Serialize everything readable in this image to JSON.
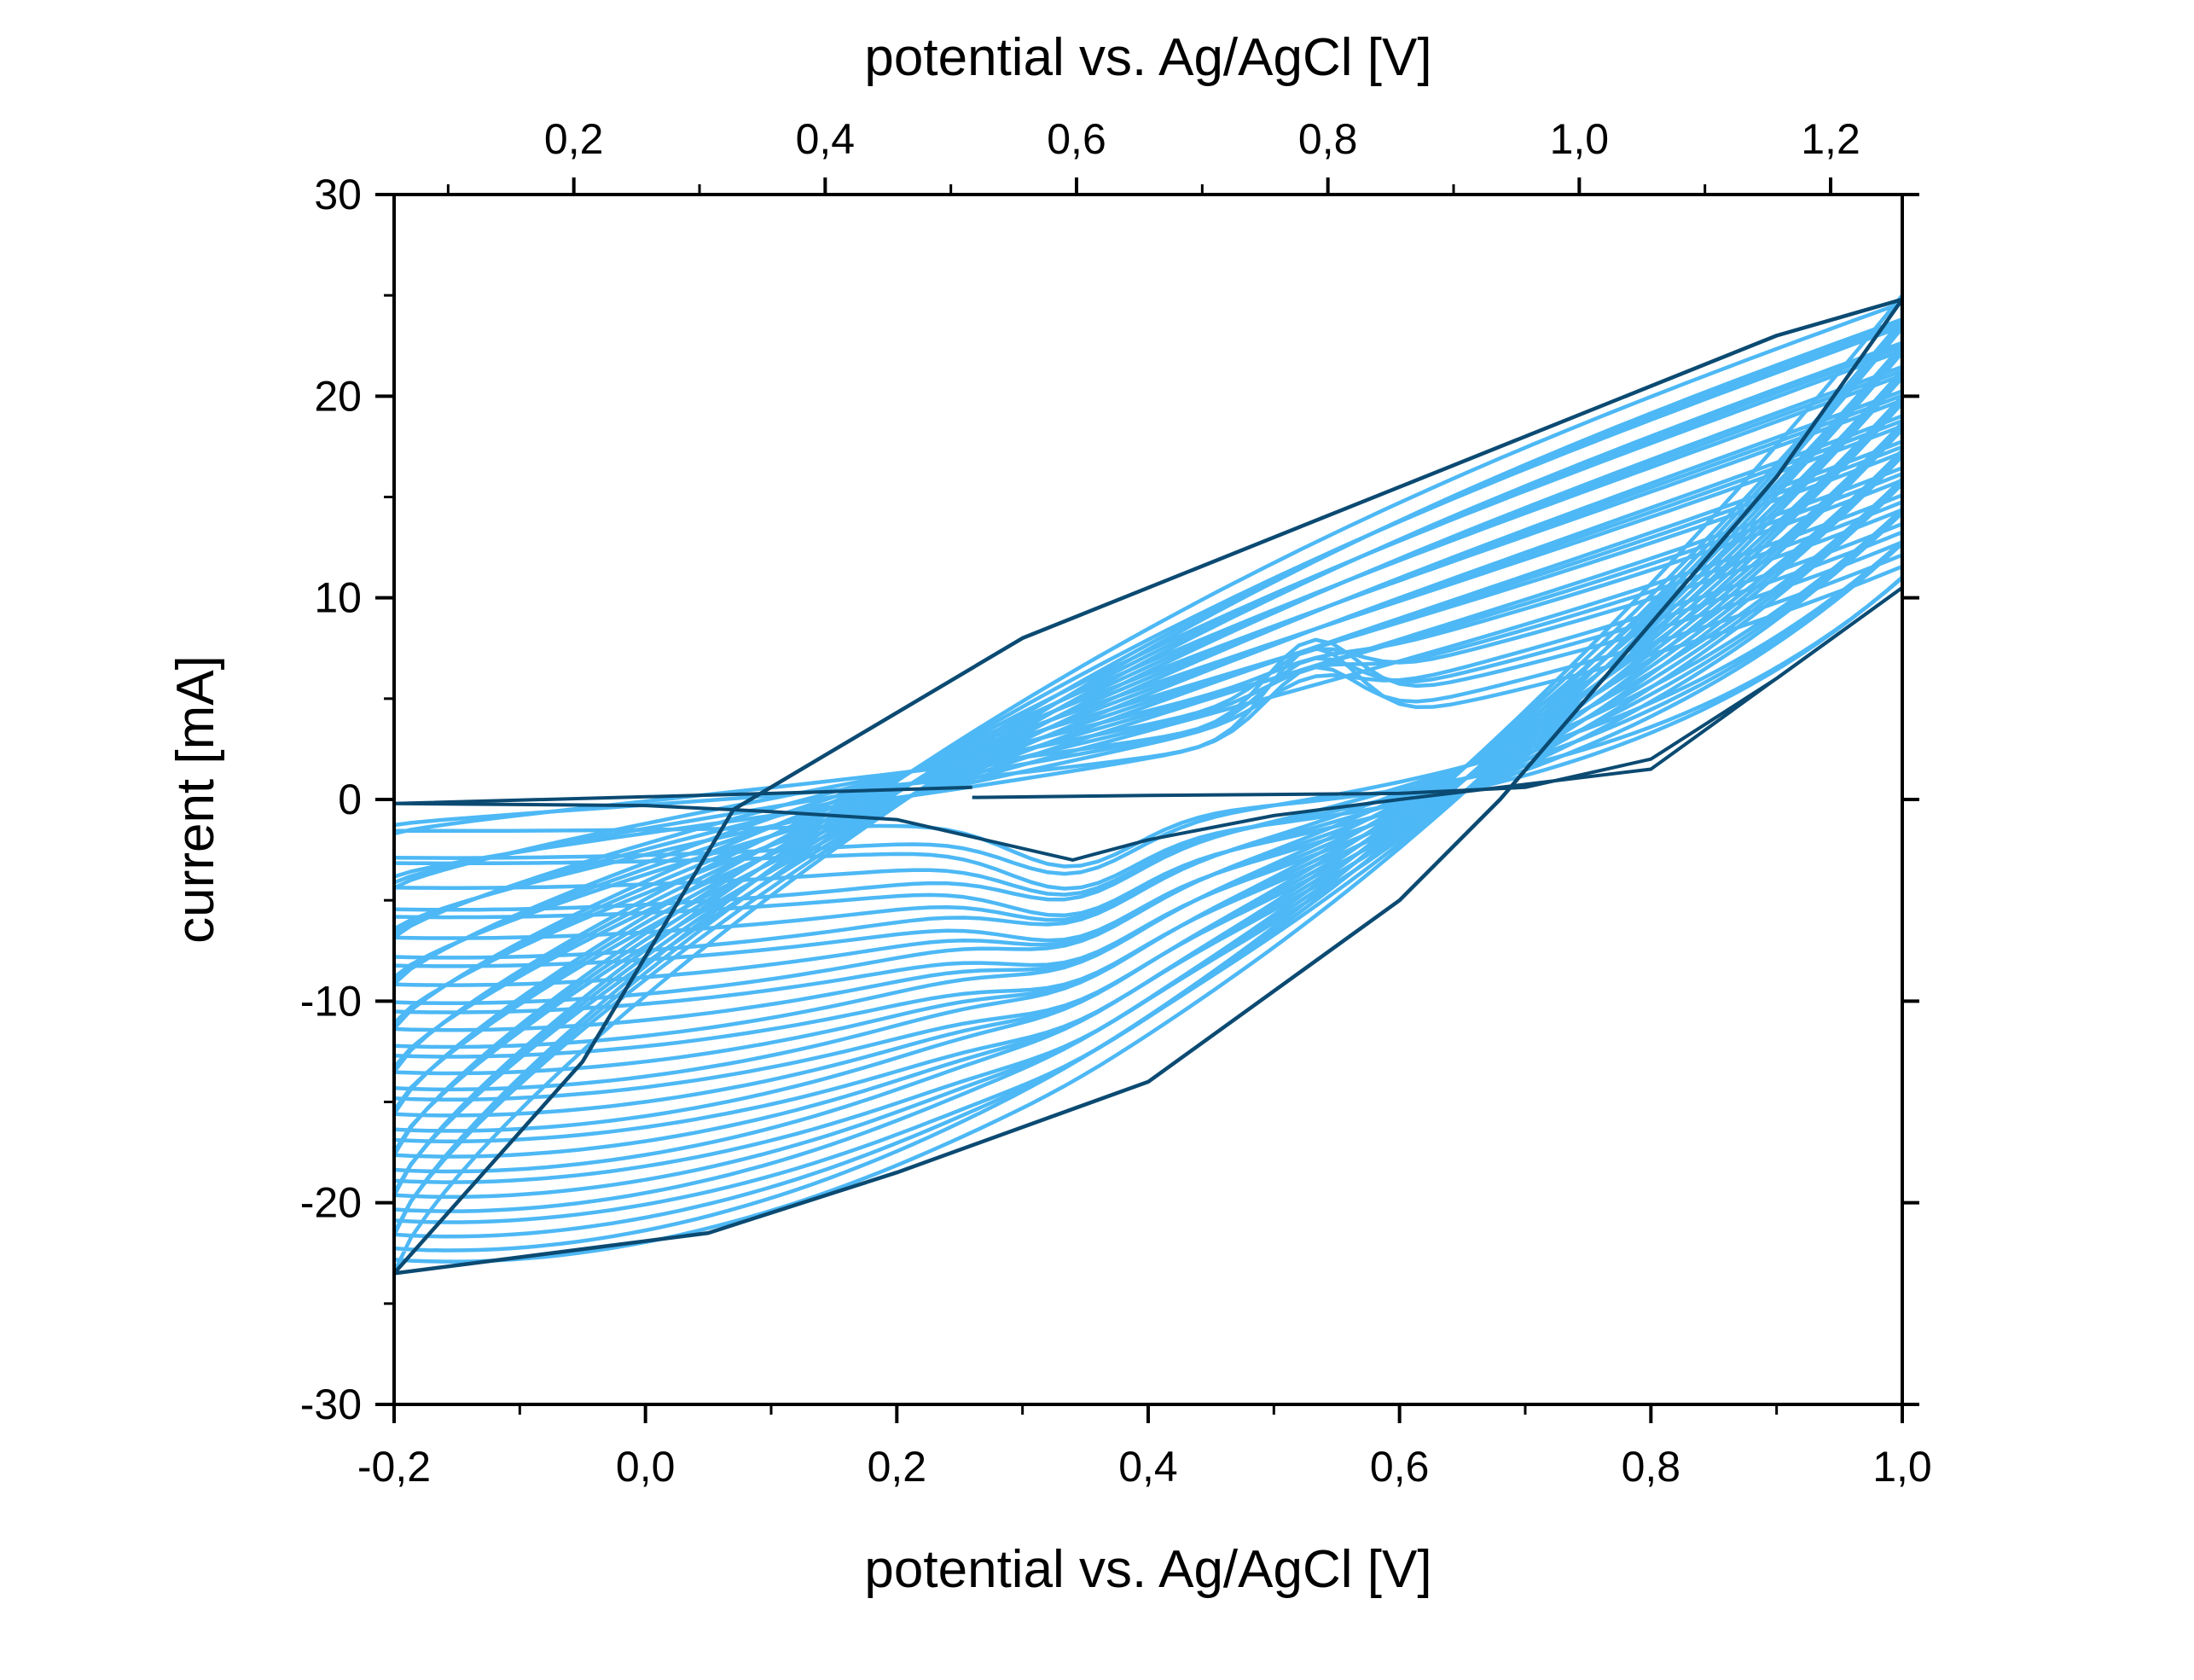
{
  "chart_data": {
    "type": "line",
    "title": "",
    "xlabel_bottom": "potential vs. Ag/AgCl [V]",
    "xlabel_top": "potential vs. Ag/AgCl [V]",
    "ylabel": "current [mA]",
    "xlim": [
      -0.2,
      1.0
    ],
    "ylim": [
      -30,
      30
    ],
    "top_xlim": [
      0.057,
      1.257
    ],
    "grid": false,
    "legend": "none",
    "x_ticks": [
      {
        "value": -0.2,
        "label": "-0,2"
      },
      {
        "value": 0.0,
        "label": "0,0"
      },
      {
        "value": 0.2,
        "label": "0,2"
      },
      {
        "value": 0.4,
        "label": "0,4"
      },
      {
        "value": 0.6,
        "label": "0,6"
      },
      {
        "value": 0.8,
        "label": "0,8"
      },
      {
        "value": 1.0,
        "label": "1,0"
      }
    ],
    "top_x_ticks": [
      {
        "value": 0.2,
        "label": "0,2"
      },
      {
        "value": 0.4,
        "label": "0,4"
      },
      {
        "value": 0.6,
        "label": "0,6"
      },
      {
        "value": 0.8,
        "label": "0,8"
      },
      {
        "value": 1.0,
        "label": "1,0"
      },
      {
        "value": 1.2,
        "label": "1,2"
      }
    ],
    "y_ticks": [
      {
        "value": 30,
        "label": "30"
      },
      {
        "value": 20,
        "label": "20"
      },
      {
        "value": 10,
        "label": "10"
      },
      {
        "value": 0,
        "label": "0"
      },
      {
        "value": -10,
        "label": "-10"
      },
      {
        "value": -20,
        "label": "-20"
      },
      {
        "value": -30,
        "label": "-30"
      }
    ],
    "cycles": {
      "count": 32,
      "color_intermediate": "#4db8f5",
      "color_first_last": "#0b4a72",
      "first_cycle": {
        "anodic": [
          [
            0.26,
            0.1
          ],
          [
            0.4,
            0.2
          ],
          [
            0.6,
            0.3
          ],
          [
            0.7,
            0.6
          ],
          [
            0.8,
            2.0
          ],
          [
            0.9,
            6.0
          ],
          [
            1.0,
            10.5
          ]
        ],
        "cathodic": [
          [
            1.0,
            10.5
          ],
          [
            0.8,
            1.5
          ],
          [
            0.6,
            0.0
          ],
          [
            0.5,
            -0.8
          ],
          [
            0.4,
            -2.0
          ],
          [
            0.34,
            -3.0
          ],
          [
            0.2,
            -1.0
          ],
          [
            0.1,
            -0.6
          ],
          [
            0.0,
            -0.3
          ],
          [
            -0.2,
            -0.2
          ]
        ],
        "return": [
          [
            -0.2,
            -0.2
          ],
          [
            0.1,
            0.3
          ],
          [
            0.26,
            0.6
          ]
        ]
      },
      "last_cycle": {
        "anodic": [
          [
            -0.2,
            -23.5
          ],
          [
            -0.05,
            -13.0
          ],
          [
            0.07,
            -0.5
          ],
          [
            0.3,
            8.0
          ],
          [
            0.6,
            15.5
          ],
          [
            0.8,
            20.5
          ],
          [
            0.9,
            23.0
          ],
          [
            1.0,
            24.8
          ]
        ],
        "cathodic": [
          [
            1.0,
            24.8
          ],
          [
            0.9,
            16.0
          ],
          [
            0.68,
            0.0
          ],
          [
            0.6,
            -5.0
          ],
          [
            0.4,
            -14.0
          ],
          [
            0.2,
            -18.5
          ],
          [
            0.05,
            -21.5
          ],
          [
            -0.2,
            -23.5
          ]
        ]
      },
      "intermediate_bounds_at_mid": {
        "anodic_x": 0.5,
        "anodic_y_range": [
          0.5,
          15.0
        ],
        "cathodic_x": 0.2,
        "cathodic_y_range": [
          -1.5,
          -18.0
        ]
      }
    }
  }
}
